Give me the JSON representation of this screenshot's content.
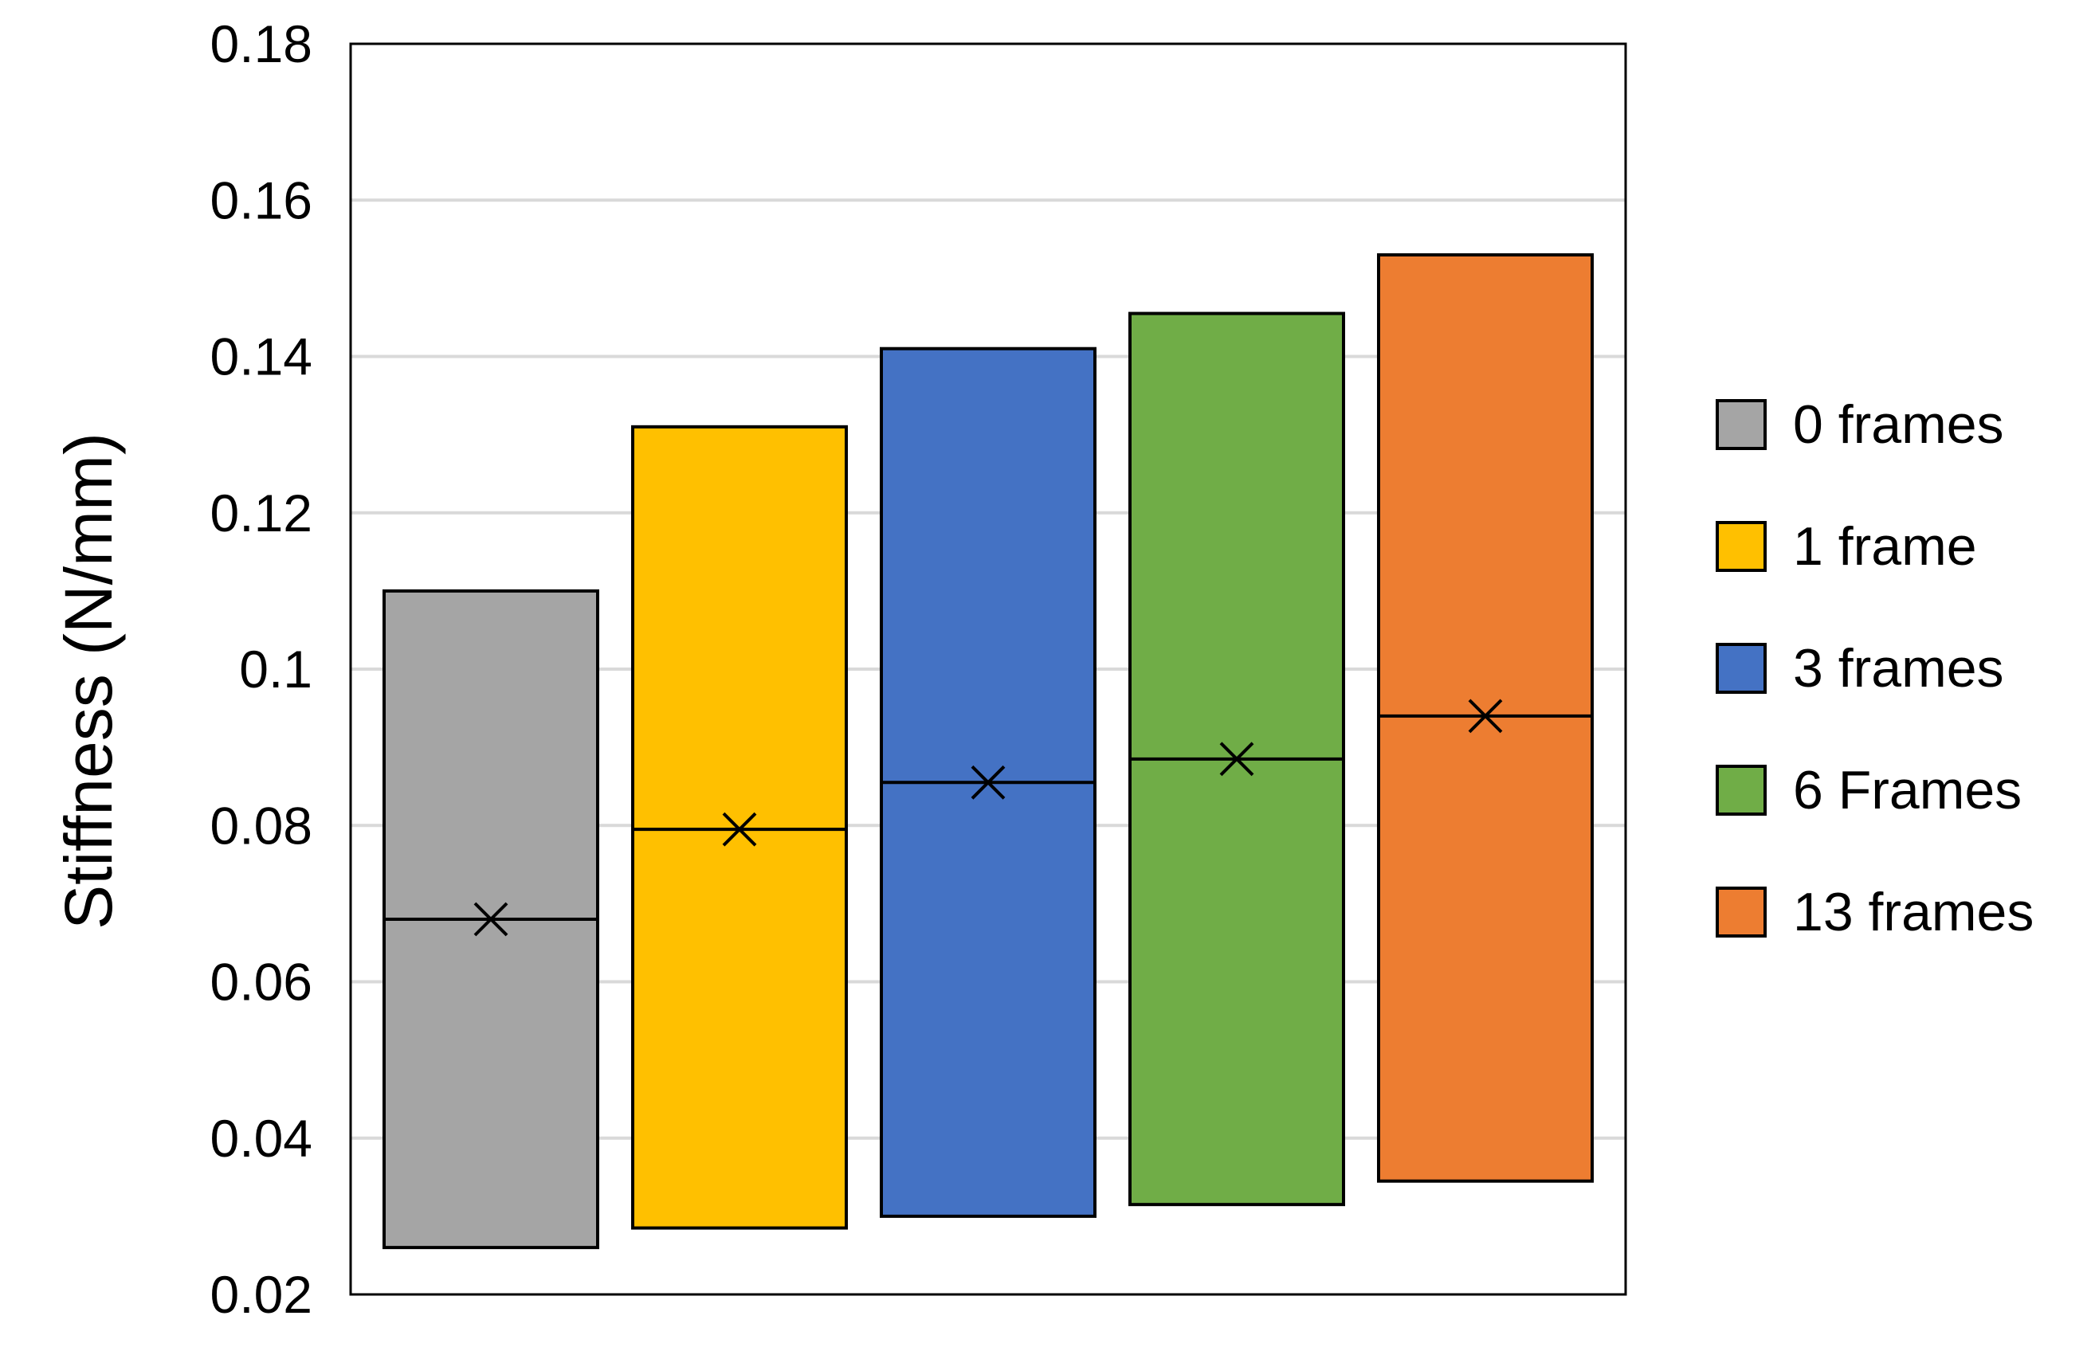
{
  "chart_data": {
    "type": "box",
    "ylabel": "Stiffness (N/mm)",
    "ylim": [
      0.02,
      0.18
    ],
    "yticks": [
      0.02,
      0.04,
      0.06,
      0.08,
      0.1,
      0.12,
      0.14,
      0.16,
      0.18
    ],
    "ytick_labels": [
      "0.02",
      "0.04",
      "0.06",
      "0.08",
      "0.1",
      "0.12",
      "0.14",
      "0.16",
      "0.18"
    ],
    "grid": true,
    "legend_position": "right",
    "series": [
      {
        "name": "0 frames",
        "color": "#a5a5a5",
        "low": 0.026,
        "high": 0.11,
        "median": 0.068,
        "mean": 0.068
      },
      {
        "name": "1 frame",
        "color": "#ffc000",
        "low": 0.0285,
        "high": 0.131,
        "median": 0.0795,
        "mean": 0.0795
      },
      {
        "name": "3 frames",
        "color": "#4472c4",
        "low": 0.03,
        "high": 0.141,
        "median": 0.0855,
        "mean": 0.0855
      },
      {
        "name": "6 Frames",
        "color": "#70ad47",
        "low": 0.0315,
        "high": 0.1455,
        "median": 0.0885,
        "mean": 0.0885
      },
      {
        "name": "13 frames",
        "color": "#ed7d31",
        "low": 0.0345,
        "high": 0.153,
        "median": 0.094,
        "mean": 0.094
      }
    ]
  }
}
